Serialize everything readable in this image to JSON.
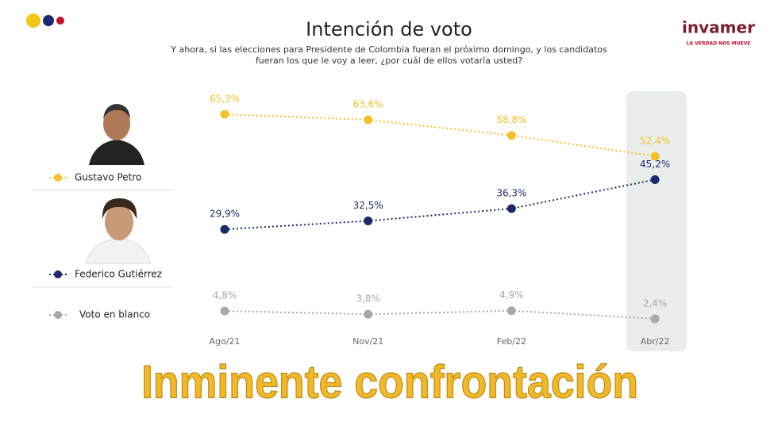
{
  "chart_data": {
    "type": "line",
    "title": "Intención de voto",
    "subtitle": "Y ahora, si las elecciones para Presidente de Colombia fueran el próximo domingo, y los candidatos fueran los que le voy a leer, ¿por cuál de ellos votaría usted?",
    "categories": [
      "Ago/21",
      "Nov/21",
      "Feb/22",
      "Abr/22"
    ],
    "series": [
      {
        "name": "Gustavo Petro",
        "color": "#f2c12e",
        "values": [
          65.3,
          63.6,
          58.8,
          52.4
        ],
        "value_labels": [
          "65,3%",
          "63,6%",
          "58,8%",
          "52,4%"
        ]
      },
      {
        "name": "Federico Gutiérrez",
        "color": "#1c2a6b",
        "values": [
          29.9,
          32.5,
          36.3,
          45.2
        ],
        "value_labels": [
          "29,9%",
          "32,5%",
          "36,3%",
          "45,2%"
        ]
      },
      {
        "name": "Voto en blanco",
        "color": "#a8a8a8",
        "values": [
          4.8,
          3.8,
          4.9,
          2.4
        ],
        "value_labels": [
          "4,8%",
          "3,8%",
          "4,9%",
          "2,4%"
        ]
      }
    ],
    "logo": "invamer",
    "logo_tagline": "LA VERDAD NOS MUEVE",
    "caption": "Inminente confrontación"
  }
}
